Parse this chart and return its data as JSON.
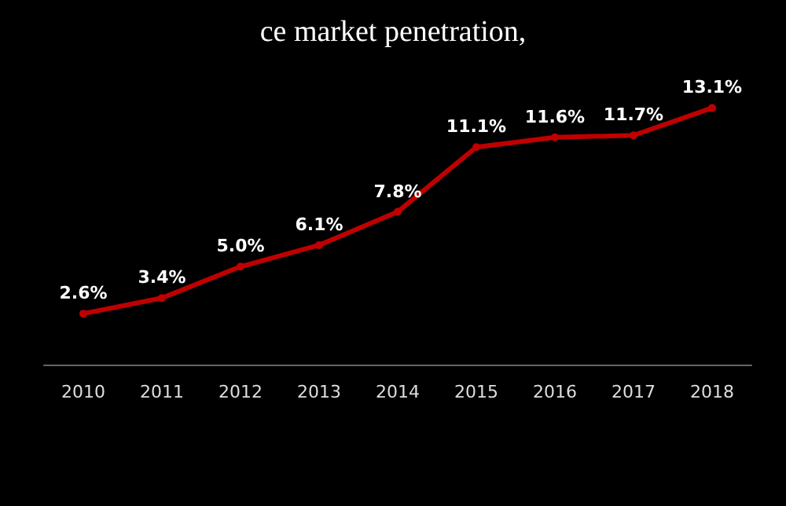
{
  "chart_data": {
    "type": "line",
    "title": "ce market penetration,",
    "categories": [
      "2010",
      "2011",
      "2012",
      "2013",
      "2014",
      "2015",
      "2016",
      "2017",
      "2018"
    ],
    "series": [
      {
        "color": "#c00000",
        "values": [
          2.6,
          3.4,
          5.0,
          6.1,
          7.8,
          11.1,
          11.6,
          11.7,
          13.1
        ],
        "value_labels": [
          "2.6%",
          "3.4%",
          "5.0%",
          "6.1%",
          "7.8%",
          "11.1%",
          "11.6%",
          "11.7%",
          "13.1%"
        ]
      }
    ],
    "marker": "circle",
    "line_style": "solid",
    "grid": false
  }
}
